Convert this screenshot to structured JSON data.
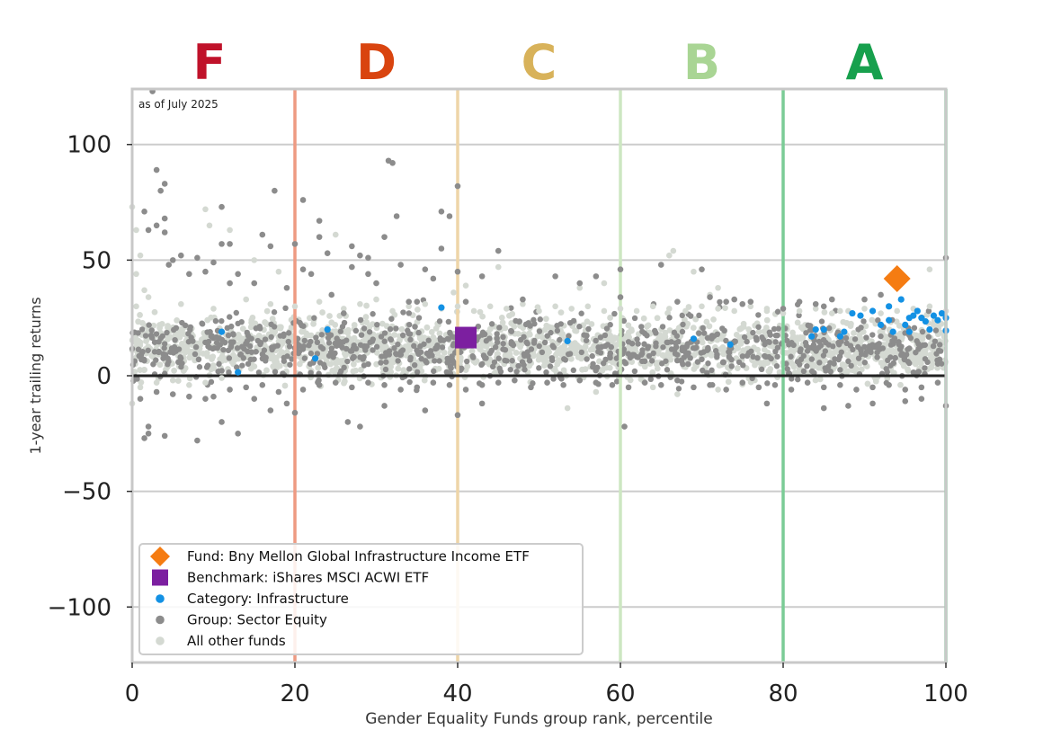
{
  "chart_data": {
    "type": "scatter",
    "annotation": "as of July 2025",
    "xlabel": "Gender Equality Funds group rank, percentile",
    "ylabel": "1-year trailing returns",
    "xlim": [
      0,
      100
    ],
    "ylim": [
      -124,
      124
    ],
    "x_ticks": [
      0,
      20,
      40,
      60,
      80,
      100
    ],
    "y_ticks": [
      -100,
      -50,
      0,
      50,
      100
    ],
    "x_tick_labels": [
      "0",
      "20",
      "40",
      "60",
      "80",
      "100"
    ],
    "y_tick_labels": [
      "−100",
      "−50",
      "0",
      "50",
      "100"
    ],
    "grid": "horizontal",
    "zero_line": 0,
    "legend_position": "lower-left",
    "grade_bands": [
      {
        "grade": "F",
        "center": 9.5,
        "color": "#c0122a",
        "line_at": 20,
        "line_color": "#ee9a82"
      },
      {
        "grade": "D",
        "center": 30,
        "color": "#d9440f",
        "line_at": 40,
        "line_color": "#eed5a8"
      },
      {
        "grade": "C",
        "center": 50,
        "color": "#d8b25a",
        "line_at": 60,
        "line_color": "#cde7c2"
      },
      {
        "grade": "B",
        "center": 70,
        "color": "#a9d594",
        "line_at": 80,
        "line_color": "#7bcc96"
      },
      {
        "grade": "A",
        "center": 90,
        "color": "#17a04d",
        "line_at": 100,
        "line_color": "#7bcc96"
      }
    ],
    "series": [
      {
        "name": "Fund: Bny Mellon Global Infrastructure Income ETF",
        "marker": "diamond",
        "color": "#f57c12",
        "points": [
          [
            94,
            42
          ]
        ]
      },
      {
        "name": "Benchmark: iShares MSCI ACWI ETF",
        "marker": "square",
        "color": "#7c1fa0",
        "points": [
          [
            41,
            16.5
          ]
        ]
      },
      {
        "name": "Category: Infrastructure",
        "marker": "circle",
        "color": "#1391e4",
        "points": [
          [
            11,
            19
          ],
          [
            13,
            1.5
          ],
          [
            22.5,
            7.5
          ],
          [
            24,
            20
          ],
          [
            38,
            29.5
          ],
          [
            53.5,
            15
          ],
          [
            69,
            16
          ],
          [
            73.5,
            13.5
          ],
          [
            83.5,
            17
          ],
          [
            84,
            20
          ],
          [
            85,
            20
          ],
          [
            87,
            17
          ],
          [
            87.5,
            19
          ],
          [
            88.5,
            27
          ],
          [
            89.5,
            26
          ],
          [
            91,
            28
          ],
          [
            92,
            22
          ],
          [
            93,
            24
          ],
          [
            93.5,
            19
          ],
          [
            94.5,
            33
          ],
          [
            95,
            22
          ],
          [
            95.5,
            25
          ],
          [
            96,
            26
          ],
          [
            96.5,
            28
          ],
          [
            97,
            25
          ],
          [
            97.5,
            23.5
          ],
          [
            98,
            20
          ],
          [
            98.5,
            26
          ],
          [
            99,
            24
          ],
          [
            99.5,
            27
          ],
          [
            100,
            19.5
          ],
          [
            100,
            25
          ],
          [
            93,
            30
          ],
          [
            95.5,
            19
          ]
        ]
      },
      {
        "name": "Group: Sector Equity",
        "marker": "circle",
        "color": "#8c8c8c",
        "points": [
          [
            2.5,
            123
          ],
          [
            3,
            89
          ],
          [
            4,
            83
          ],
          [
            3.5,
            80
          ],
          [
            1.5,
            71
          ],
          [
            4,
            68
          ],
          [
            3,
            65
          ],
          [
            4,
            62
          ],
          [
            2,
            63
          ],
          [
            5,
            50
          ],
          [
            6,
            52
          ],
          [
            4.5,
            48
          ],
          [
            7,
            44
          ],
          [
            8,
            51
          ],
          [
            9,
            45
          ],
          [
            10,
            49
          ],
          [
            11,
            57
          ],
          [
            11,
            73
          ],
          [
            12,
            57
          ],
          [
            12,
            40
          ],
          [
            13,
            44
          ],
          [
            15,
            40
          ],
          [
            16,
            61
          ],
          [
            17,
            56
          ],
          [
            17.5,
            80
          ],
          [
            19,
            38
          ],
          [
            20,
            57
          ],
          [
            21,
            46
          ],
          [
            21,
            76
          ],
          [
            22,
            44
          ],
          [
            23,
            60
          ],
          [
            23,
            67
          ],
          [
            24,
            53
          ],
          [
            24.5,
            35
          ],
          [
            26,
            27
          ],
          [
            27,
            56
          ],
          [
            27,
            47
          ],
          [
            28,
            52
          ],
          [
            29,
            51
          ],
          [
            29,
            44
          ],
          [
            30,
            40
          ],
          [
            31,
            60
          ],
          [
            31.5,
            93
          ],
          [
            32,
            92
          ],
          [
            32.5,
            69
          ],
          [
            33,
            48
          ],
          [
            34,
            32
          ],
          [
            35,
            32
          ],
          [
            36,
            46
          ],
          [
            37,
            42
          ],
          [
            38,
            71
          ],
          [
            38,
            55
          ],
          [
            39,
            69
          ],
          [
            40,
            82
          ],
          [
            40,
            45
          ],
          [
            41,
            32
          ],
          [
            43,
            43
          ],
          [
            45,
            54
          ],
          [
            48,
            33
          ],
          [
            52,
            43
          ],
          [
            55,
            40
          ],
          [
            57,
            43
          ],
          [
            60,
            46
          ],
          [
            60,
            34
          ],
          [
            65,
            48
          ],
          [
            67,
            32
          ],
          [
            70,
            46
          ],
          [
            71,
            34
          ],
          [
            73,
            32
          ],
          [
            74,
            33
          ],
          [
            75,
            31
          ],
          [
            76,
            32
          ],
          [
            80,
            29
          ],
          [
            82,
            32
          ],
          [
            84,
            31
          ],
          [
            85,
            30
          ],
          [
            86,
            33
          ],
          [
            90,
            33
          ],
          [
            92,
            35
          ],
          [
            100,
            51
          ],
          [
            2,
            -25
          ],
          [
            2,
            -22
          ],
          [
            1.5,
            -27
          ],
          [
            4,
            -26
          ],
          [
            8,
            -28
          ],
          [
            11,
            -20
          ],
          [
            13,
            -25
          ],
          [
            15,
            -10
          ],
          [
            17,
            -15
          ],
          [
            19,
            -12
          ],
          [
            20,
            -16
          ],
          [
            26.5,
            -20
          ],
          [
            28,
            -22
          ],
          [
            31,
            -13
          ],
          [
            36,
            -15
          ],
          [
            40,
            -17
          ],
          [
            43,
            -12
          ],
          [
            60.5,
            -22
          ],
          [
            78,
            -12
          ],
          [
            85,
            -14
          ],
          [
            88,
            -13
          ],
          [
            91,
            -12
          ],
          [
            95,
            -11
          ],
          [
            97,
            -10
          ],
          [
            100,
            -13
          ],
          [
            1,
            -10
          ],
          [
            3,
            -7
          ],
          [
            5,
            -8
          ],
          [
            7,
            -9
          ],
          [
            9,
            -10
          ],
          [
            10,
            -9
          ],
          [
            12,
            -6
          ],
          [
            14,
            -5
          ],
          [
            16,
            -4
          ],
          [
            18,
            -7
          ],
          [
            21,
            -6
          ],
          [
            23,
            -4
          ],
          [
            25,
            -3
          ],
          [
            27,
            -5
          ],
          [
            29,
            -3
          ],
          [
            31,
            -4
          ],
          [
            33,
            -6
          ],
          [
            35,
            -5
          ],
          [
            37,
            -3
          ],
          [
            39,
            -4
          ],
          [
            41,
            -6
          ],
          [
            43,
            -4
          ],
          [
            45,
            -3
          ],
          [
            47,
            -2
          ],
          [
            49,
            -5
          ],
          [
            51,
            -3
          ],
          [
            53,
            -4
          ],
          [
            55,
            -2
          ],
          [
            57,
            -3
          ],
          [
            59,
            -4
          ],
          [
            61,
            -5
          ],
          [
            63,
            -3
          ],
          [
            65,
            -4
          ],
          [
            67,
            -2
          ],
          [
            69,
            -5
          ],
          [
            71,
            -4
          ],
          [
            73,
            -6
          ],
          [
            75,
            -3
          ],
          [
            77,
            -5
          ],
          [
            79,
            -4
          ],
          [
            81,
            -6
          ],
          [
            83,
            -3
          ],
          [
            85,
            -5
          ],
          [
            87,
            -4
          ],
          [
            89,
            -6
          ],
          [
            91,
            -5
          ],
          [
            93,
            -4
          ],
          [
            95,
            -6
          ],
          [
            97,
            -5
          ],
          [
            99,
            -3
          ]
        ]
      },
      {
        "name": "All other funds",
        "marker": "circle",
        "color": "#d4d9d2",
        "points": [
          [
            0,
            73
          ],
          [
            0.5,
            63
          ],
          [
            1,
            52
          ],
          [
            0.5,
            44
          ],
          [
            1.5,
            37
          ],
          [
            9,
            72
          ],
          [
            9.5,
            65
          ],
          [
            12,
            63
          ],
          [
            15,
            50
          ],
          [
            18,
            45
          ],
          [
            25,
            61
          ],
          [
            39.5,
            36
          ],
          [
            41,
            39
          ],
          [
            45,
            47
          ],
          [
            55,
            38
          ],
          [
            58,
            40
          ],
          [
            66,
            52
          ],
          [
            66.5,
            54
          ],
          [
            69,
            45
          ],
          [
            71,
            35
          ],
          [
            72,
            38
          ],
          [
            78,
            28
          ],
          [
            87,
            28
          ],
          [
            98,
            46
          ],
          [
            53.5,
            -14
          ],
          [
            57,
            -7
          ],
          [
            64,
            -5
          ],
          [
            67,
            -8
          ],
          [
            72,
            -6
          ],
          [
            1,
            -5
          ],
          [
            3,
            -3
          ],
          [
            5,
            -2
          ],
          [
            7,
            -4
          ],
          [
            9,
            -3
          ],
          [
            11,
            -1
          ],
          [
            0,
            -12
          ],
          [
            0.5,
            30
          ],
          [
            2,
            34
          ],
          [
            6,
            31
          ],
          [
            10,
            29
          ],
          [
            14,
            33
          ],
          [
            17,
            31
          ],
          [
            20,
            30
          ],
          [
            23,
            32
          ],
          [
            26,
            29
          ],
          [
            28,
            31
          ],
          [
            30,
            33
          ],
          [
            32,
            28
          ],
          [
            34,
            30
          ],
          [
            36,
            31
          ],
          [
            38,
            29
          ],
          [
            40,
            30
          ],
          [
            42,
            28
          ],
          [
            44,
            30
          ],
          [
            46,
            29
          ],
          [
            48,
            31
          ],
          [
            50,
            28
          ],
          [
            52,
            30
          ],
          [
            54,
            29
          ],
          [
            56,
            30
          ],
          [
            58,
            28
          ],
          [
            60,
            29
          ],
          [
            62,
            28
          ],
          [
            64,
            30
          ],
          [
            66,
            29
          ],
          [
            68,
            28
          ],
          [
            70,
            30
          ],
          [
            72,
            29
          ],
          [
            74,
            28
          ],
          [
            76,
            30
          ],
          [
            78,
            29
          ],
          [
            80,
            27
          ],
          [
            82,
            28
          ],
          [
            84,
            29
          ],
          [
            86,
            27
          ],
          [
            88,
            28
          ],
          [
            90,
            29
          ],
          [
            92,
            27
          ],
          [
            94,
            28
          ],
          [
            96,
            29
          ],
          [
            98,
            30
          ],
          [
            100,
            28
          ]
        ]
      }
    ],
    "cloud": {
      "description_free": true,
      "x_range": [
        0,
        100
      ],
      "y_center": 12,
      "y_spread": 9,
      "gray_count": 900,
      "light_count": 1800
    }
  }
}
